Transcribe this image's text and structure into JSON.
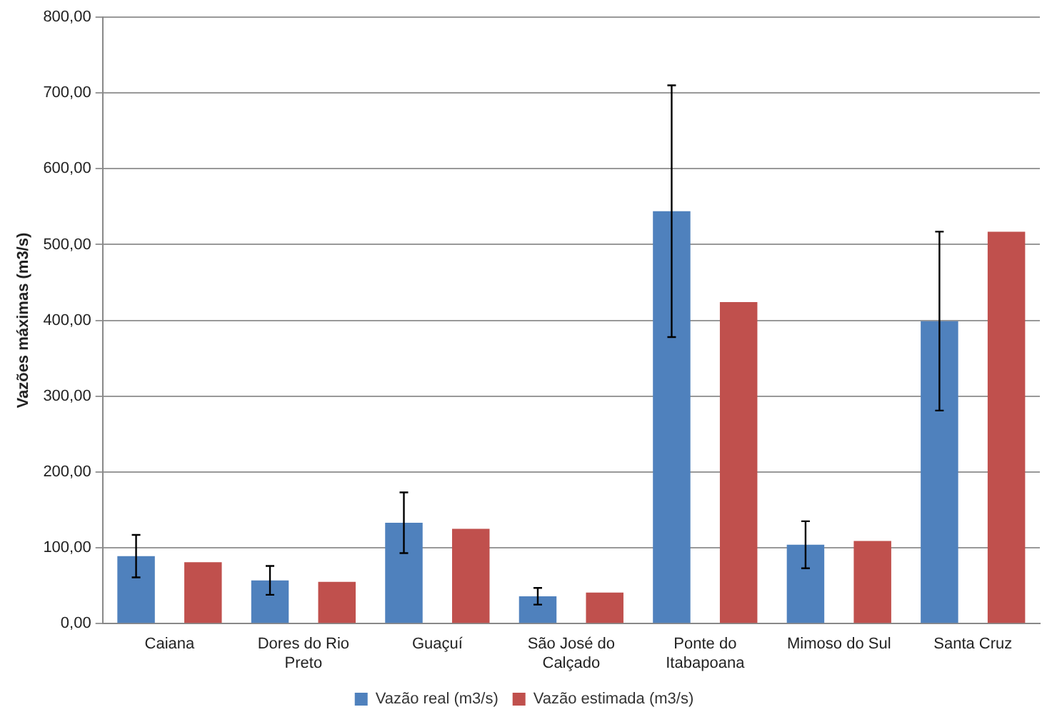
{
  "chart_data": {
    "type": "bar",
    "ylabel": "Vazões máximas (m3/s)",
    "categories": [
      "Caiana",
      "Dores do Rio Preto",
      "Guaçuí",
      "São José do Calçado",
      "Ponte do Itabapoana",
      "Mimoso do Sul",
      "Santa Cruz"
    ],
    "series": [
      {
        "name": "Vazão real (m3/s)",
        "color": "#4f81bd",
        "values": [
          89,
          57,
          133,
          36,
          544,
          104,
          399
        ],
        "errors": [
          28,
          19,
          40,
          11,
          166,
          31,
          118
        ]
      },
      {
        "name": "Vazão estimada (m3/s)",
        "color": "#c0504d",
        "values": [
          81,
          55,
          125,
          41,
          424,
          109,
          517
        ]
      }
    ],
    "ylim": [
      0,
      800
    ],
    "yticks": [
      {
        "value": 0,
        "label": "0,00"
      },
      {
        "value": 100,
        "label": "100,00"
      },
      {
        "value": 200,
        "label": "200,00"
      },
      {
        "value": 300,
        "label": "300,00"
      },
      {
        "value": 400,
        "label": "400,00"
      },
      {
        "value": 500,
        "label": "500,00"
      },
      {
        "value": 600,
        "label": "600,00"
      },
      {
        "value": 700,
        "label": "700,00"
      },
      {
        "value": 800,
        "label": "800,00"
      }
    ],
    "grid": "y",
    "legend": "bottom"
  }
}
